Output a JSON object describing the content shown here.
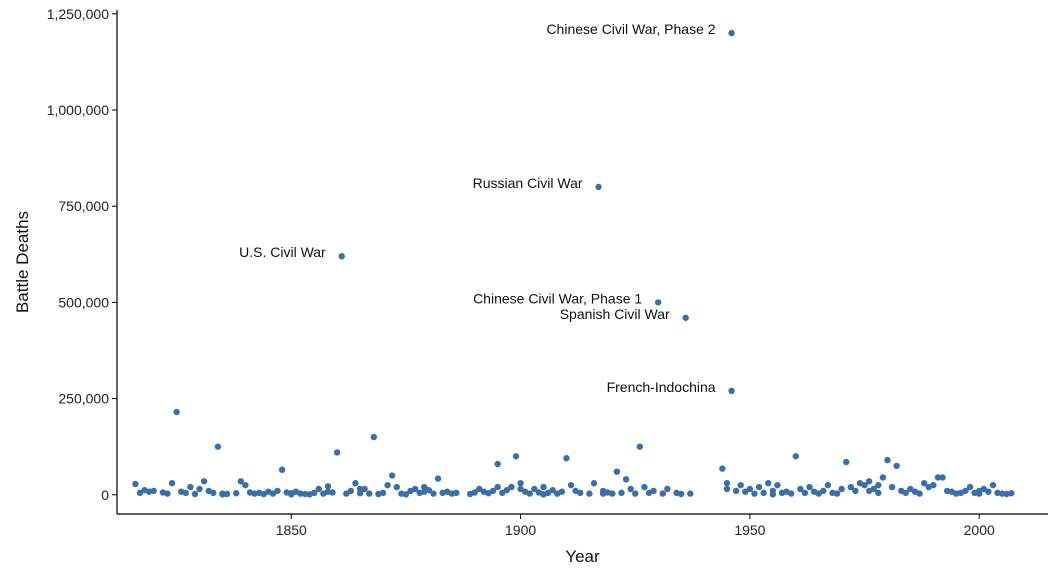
{
  "chart_data": {
    "type": "scatter",
    "title": "",
    "xlabel": "Year",
    "ylabel": "Battle Deaths",
    "xlim": [
      1812,
      2015
    ],
    "ylim": [
      -50000,
      1260000
    ],
    "x_ticks": [
      {
        "value": 1850,
        "label": "1850"
      },
      {
        "value": 1900,
        "label": "1900"
      },
      {
        "value": 1950,
        "label": "1950"
      },
      {
        "value": 2000,
        "label": "2000"
      }
    ],
    "y_ticks": [
      {
        "value": 0,
        "label": "0"
      },
      {
        "value": 250000,
        "label": "250,000"
      },
      {
        "value": 500000,
        "label": "500,000"
      },
      {
        "value": 750000,
        "label": "750,000"
      },
      {
        "value": 1000000,
        "label": "1,000,000"
      },
      {
        "value": 1250000,
        "label": "1,250,000"
      }
    ],
    "grid": false,
    "legend": "none",
    "point_color": "#3C6FA8",
    "annotations": [
      {
        "label": "Chinese Civil War, Phase 2",
        "x": 1946,
        "y": 1200000
      },
      {
        "label": "Russian Civil War",
        "x": 1917,
        "y": 800000
      },
      {
        "label": "U.S. Civil War",
        "x": 1861,
        "y": 620000
      },
      {
        "label": "Chinese Civil War, Phase 1",
        "x": 1930,
        "y": 500000
      },
      {
        "label": "Spanish Civil War",
        "x": 1936,
        "y": 460000
      },
      {
        "label": "French-Indochina",
        "x": 1946,
        "y": 270000
      }
    ],
    "points": [
      [
        1946,
        1200000
      ],
      [
        1917,
        800000
      ],
      [
        1861,
        620000
      ],
      [
        1930,
        500000
      ],
      [
        1936,
        460000
      ],
      [
        1946,
        270000
      ],
      [
        1825,
        215000
      ],
      [
        1834,
        125000
      ],
      [
        1860,
        110000
      ],
      [
        1868,
        150000
      ],
      [
        1899,
        100000
      ],
      [
        1910,
        95000
      ],
      [
        1926,
        125000
      ],
      [
        1848,
        65000
      ],
      [
        1895,
        80000
      ],
      [
        1944,
        68000
      ],
      [
        1960,
        100000
      ],
      [
        1971,
        85000
      ],
      [
        1980,
        90000
      ],
      [
        1982,
        75000
      ],
      [
        1872,
        50000
      ],
      [
        1882,
        42000
      ],
      [
        1921,
        60000
      ],
      [
        1923,
        40000
      ],
      [
        1991,
        45000
      ],
      [
        1979,
        45000
      ],
      [
        1992,
        45000
      ],
      [
        1816,
        28000
      ],
      [
        1817,
        5000
      ],
      [
        1818,
        12000
      ],
      [
        1819,
        8000
      ],
      [
        1820,
        10000
      ],
      [
        1822,
        6000
      ],
      [
        1823,
        3000
      ],
      [
        1824,
        30000
      ],
      [
        1826,
        8000
      ],
      [
        1827,
        5000
      ],
      [
        1828,
        20000
      ],
      [
        1829,
        2000
      ],
      [
        1830,
        15000
      ],
      [
        1831,
        35000
      ],
      [
        1832,
        10000
      ],
      [
        1833,
        5000
      ],
      [
        1835,
        3000
      ],
      [
        1836,
        2000
      ],
      [
        1838,
        4000
      ],
      [
        1839,
        35000
      ],
      [
        1840,
        25000
      ],
      [
        1841,
        6000
      ],
      [
        1842,
        3000
      ],
      [
        1843,
        5000
      ],
      [
        1844,
        2000
      ],
      [
        1845,
        8000
      ],
      [
        1846,
        3000
      ],
      [
        1847,
        10000
      ],
      [
        1849,
        6000
      ],
      [
        1850,
        4000
      ],
      [
        1851,
        8000
      ],
      [
        1852,
        3000
      ],
      [
        1853,
        2000
      ],
      [
        1854,
        1000
      ],
      [
        1855,
        5000
      ],
      [
        1856,
        15000
      ],
      [
        1857,
        3000
      ],
      [
        1858,
        22000
      ],
      [
        1859,
        6000
      ],
      [
        1862,
        3000
      ],
      [
        1863,
        10000
      ],
      [
        1864,
        30000
      ],
      [
        1865,
        4000
      ],
      [
        1866,
        15000
      ],
      [
        1867,
        3000
      ],
      [
        1869,
        2000
      ],
      [
        1870,
        5000
      ],
      [
        1871,
        25000
      ],
      [
        1873,
        20000
      ],
      [
        1874,
        3000
      ],
      [
        1876,
        10000
      ],
      [
        1877,
        15000
      ],
      [
        1878,
        5000
      ],
      [
        1879,
        20000
      ],
      [
        1880,
        12000
      ],
      [
        1881,
        3000
      ],
      [
        1883,
        5000
      ],
      [
        1884,
        8000
      ],
      [
        1885,
        3000
      ],
      [
        1886,
        5000
      ],
      [
        1889,
        2000
      ],
      [
        1890,
        6000
      ],
      [
        1891,
        15000
      ],
      [
        1892,
        8000
      ],
      [
        1893,
        4000
      ],
      [
        1894,
        10000
      ],
      [
        1896,
        5000
      ],
      [
        1897,
        12000
      ],
      [
        1898,
        20000
      ],
      [
        1900,
        30000
      ],
      [
        1901,
        8000
      ],
      [
        1902,
        3000
      ],
      [
        1903,
        15000
      ],
      [
        1904,
        6000
      ],
      [
        1905,
        20000
      ],
      [
        1906,
        5000
      ],
      [
        1907,
        12000
      ],
      [
        1908,
        3000
      ],
      [
        1909,
        8000
      ],
      [
        1911,
        25000
      ],
      [
        1912,
        10000
      ],
      [
        1913,
        5000
      ],
      [
        1915,
        3000
      ],
      [
        1916,
        30000
      ],
      [
        1918,
        10000
      ],
      [
        1919,
        6000
      ],
      [
        1920,
        3000
      ],
      [
        1922,
        5000
      ],
      [
        1924,
        15000
      ],
      [
        1925,
        3000
      ],
      [
        1927,
        20000
      ],
      [
        1928,
        5000
      ],
      [
        1929,
        10000
      ],
      [
        1931,
        3000
      ],
      [
        1932,
        15000
      ],
      [
        1934,
        5000
      ],
      [
        1935,
        2000
      ],
      [
        1937,
        3000
      ],
      [
        1945,
        30000
      ],
      [
        1947,
        10000
      ],
      [
        1948,
        25000
      ],
      [
        1949,
        8000
      ],
      [
        1950,
        15000
      ],
      [
        1951,
        3000
      ],
      [
        1952,
        20000
      ],
      [
        1953,
        5000
      ],
      [
        1954,
        30000
      ],
      [
        1955,
        10000
      ],
      [
        1956,
        25000
      ],
      [
        1957,
        5000
      ],
      [
        1958,
        8000
      ],
      [
        1959,
        3000
      ],
      [
        1961,
        15000
      ],
      [
        1962,
        5000
      ],
      [
        1963,
        20000
      ],
      [
        1964,
        8000
      ],
      [
        1965,
        3000
      ],
      [
        1966,
        10000
      ],
      [
        1967,
        25000
      ],
      [
        1968,
        5000
      ],
      [
        1969,
        3000
      ],
      [
        1970,
        15000
      ],
      [
        1972,
        20000
      ],
      [
        1973,
        10000
      ],
      [
        1974,
        30000
      ],
      [
        1975,
        25000
      ],
      [
        1976,
        35000
      ],
      [
        1977,
        15000
      ],
      [
        1978,
        5000
      ],
      [
        1981,
        20000
      ],
      [
        1983,
        10000
      ],
      [
        1984,
        5000
      ],
      [
        1985,
        15000
      ],
      [
        1986,
        8000
      ],
      [
        1987,
        3000
      ],
      [
        1988,
        30000
      ],
      [
        1989,
        20000
      ],
      [
        1990,
        25000
      ],
      [
        1993,
        10000
      ],
      [
        1994,
        8000
      ],
      [
        1995,
        3000
      ],
      [
        1996,
        5000
      ],
      [
        1997,
        10000
      ],
      [
        1998,
        20000
      ],
      [
        1999,
        5000
      ],
      [
        2000,
        3000
      ],
      [
        2001,
        15000
      ],
      [
        2002,
        8000
      ],
      [
        2003,
        25000
      ],
      [
        2004,
        5000
      ],
      [
        2005,
        3000
      ],
      [
        2006,
        2000
      ],
      [
        2007,
        4000
      ],
      [
        1858,
        8000
      ],
      [
        1865,
        15000
      ],
      [
        1879,
        8000
      ],
      [
        1895,
        20000
      ],
      [
        1900,
        15000
      ],
      [
        1918,
        3000
      ],
      [
        1945,
        15000
      ],
      [
        1976,
        10000
      ],
      [
        1978,
        25000
      ],
      [
        2000,
        10000
      ],
      [
        1835,
        1000
      ],
      [
        1850,
        1000
      ],
      [
        1875,
        1000
      ],
      [
        1905,
        1000
      ],
      [
        1955,
        1000
      ]
    ]
  }
}
